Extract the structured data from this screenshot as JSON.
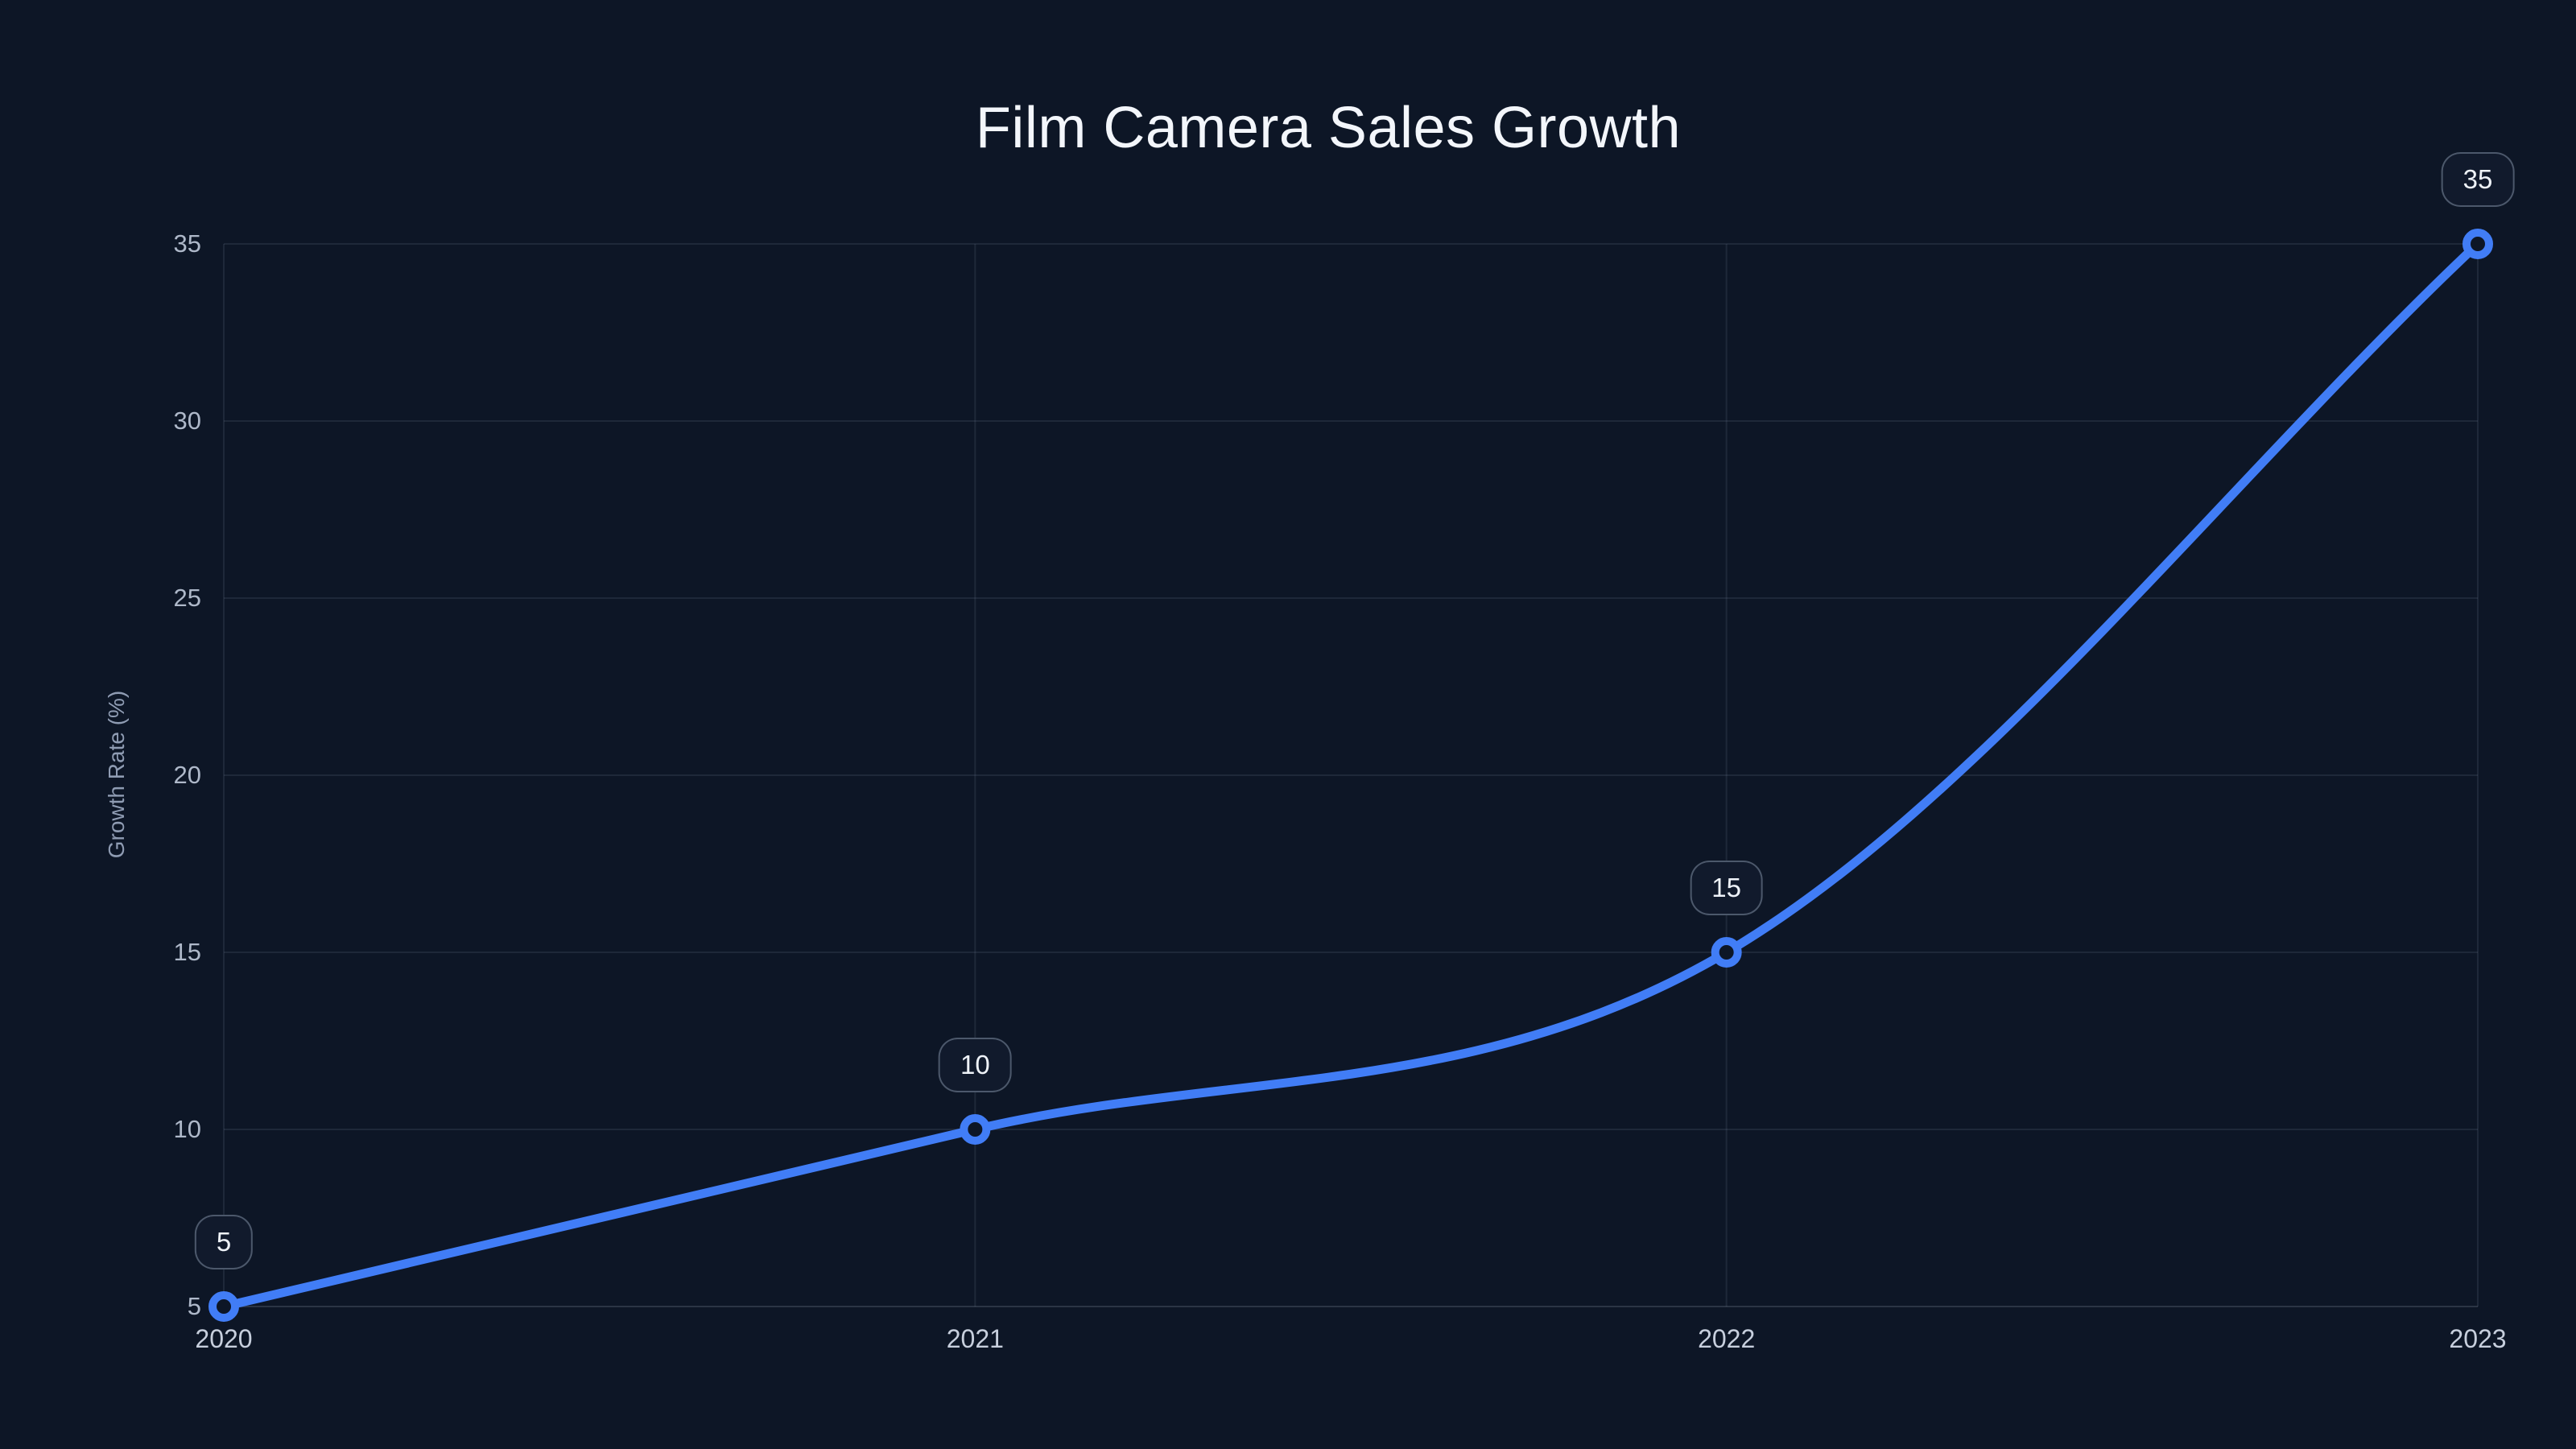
{
  "chart_data": {
    "type": "line",
    "title": "Film Camera Sales Growth",
    "xlabel": "",
    "ylabel": "Growth Rate (%)",
    "categories": [
      "2020",
      "2021",
      "2022",
      "2023"
    ],
    "series": [
      {
        "name": "Growth Rate (%)",
        "values": [
          5,
          10,
          15,
          35
        ]
      }
    ],
    "point_labels": [
      "5",
      "10",
      "15",
      "35"
    ],
    "y_ticks": [
      "5",
      "10",
      "15",
      "20",
      "25",
      "30",
      "35"
    ],
    "ylim": [
      5,
      35
    ],
    "grid": true,
    "legend_position": "none",
    "curve": "monotone",
    "colors": {
      "background": "#0d1626",
      "line": "#417df6",
      "marker_ring": "#417df6",
      "marker_fill": "#0d1626",
      "grid": "rgba(148,163,184,0.13)",
      "baseline_grid": "rgba(148,163,184,0.22)",
      "title_text": "#f3f6fb",
      "y_tick_text": "#aeb8c9",
      "x_tick_text": "#c7cfdd",
      "axis_title_text": "#8f9cb3",
      "label_pill_bg": "#111a2c",
      "label_pill_border": "rgba(148,163,184,0.45)",
      "label_pill_text": "#eef2f8"
    }
  }
}
